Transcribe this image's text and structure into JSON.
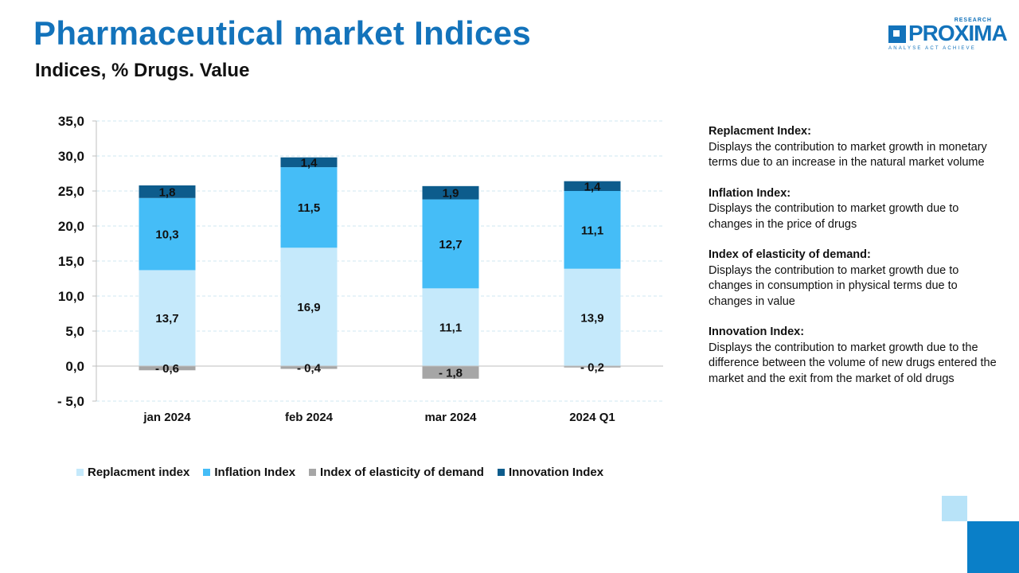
{
  "header": {
    "title": "Pharmaceutical market Indices",
    "subtitle": "Indices, % Drugs.  Value"
  },
  "logo": {
    "word": "PROXIMA",
    "research": "RESEARCH",
    "tagline": "ANALYSE ACT ACHIEVE"
  },
  "colors": {
    "title": "#1373bb",
    "replacement": "#c5e9fb",
    "inflation": "#45bdf7",
    "elasticity": "#a6a6a6",
    "innovation": "#0d5c8c"
  },
  "chart_data": {
    "type": "bar",
    "stacked": true,
    "categories": [
      "jan 2024",
      "feb 2024",
      "mar 2024",
      "2024 Q1"
    ],
    "series": [
      {
        "name": "Replacment index",
        "values": [
          13.7,
          16.9,
          11.1,
          13.9
        ],
        "labels": [
          "13,7",
          "16,9",
          "11,1",
          "13,9"
        ],
        "color": "#c5e9fb"
      },
      {
        "name": "Inflation Index",
        "values": [
          10.3,
          11.5,
          12.7,
          11.1
        ],
        "labels": [
          "10,3",
          "11,5",
          "12,7",
          "11,1"
        ],
        "color": "#45bdf7"
      },
      {
        "name": "Index of elasticity of demand",
        "values": [
          -0.6,
          -0.4,
          -1.8,
          -0.2
        ],
        "labels": [
          "- 0,6",
          "- 0,4",
          "- 1,8",
          "- 0,2"
        ],
        "color": "#a6a6a6"
      },
      {
        "name": "Innovation Index",
        "values": [
          1.8,
          1.4,
          1.9,
          1.4
        ],
        "labels": [
          "1,8",
          "1,4",
          "1,9",
          "1,4"
        ],
        "color": "#0d5c8c"
      }
    ],
    "ylim": [
      -5,
      35
    ],
    "yticks": [
      35,
      30,
      25,
      20,
      15,
      10,
      5,
      0,
      -5
    ],
    "ytick_labels": [
      "35,0",
      "30,0",
      "25,0",
      "20,0",
      "15,0",
      "10,0",
      "5,0",
      "0,0",
      "- 5,0"
    ],
    "grid": true,
    "legend_position": "bottom",
    "title": "",
    "xlabel": "",
    "ylabel": ""
  },
  "notes": [
    {
      "title": "Replacment Index:",
      "text": "Displays the contribution to market growth in monetary terms  due to an increase in the natural market volume"
    },
    {
      "title": "Inflation Index:",
      "text": "Displays the contribution to market growth due to changes in the price of drugs"
    },
    {
      "title": "Index of elasticity of demand:",
      "text": "Displays the contribution to market growth due to changes in consumption in physical terms due to changes in value"
    },
    {
      "title": "Innovation Index:",
      "text": "Displays the contribution to market growth due to the difference between the volume of new drugs entered the market and the exit from the market of old drugs"
    }
  ]
}
